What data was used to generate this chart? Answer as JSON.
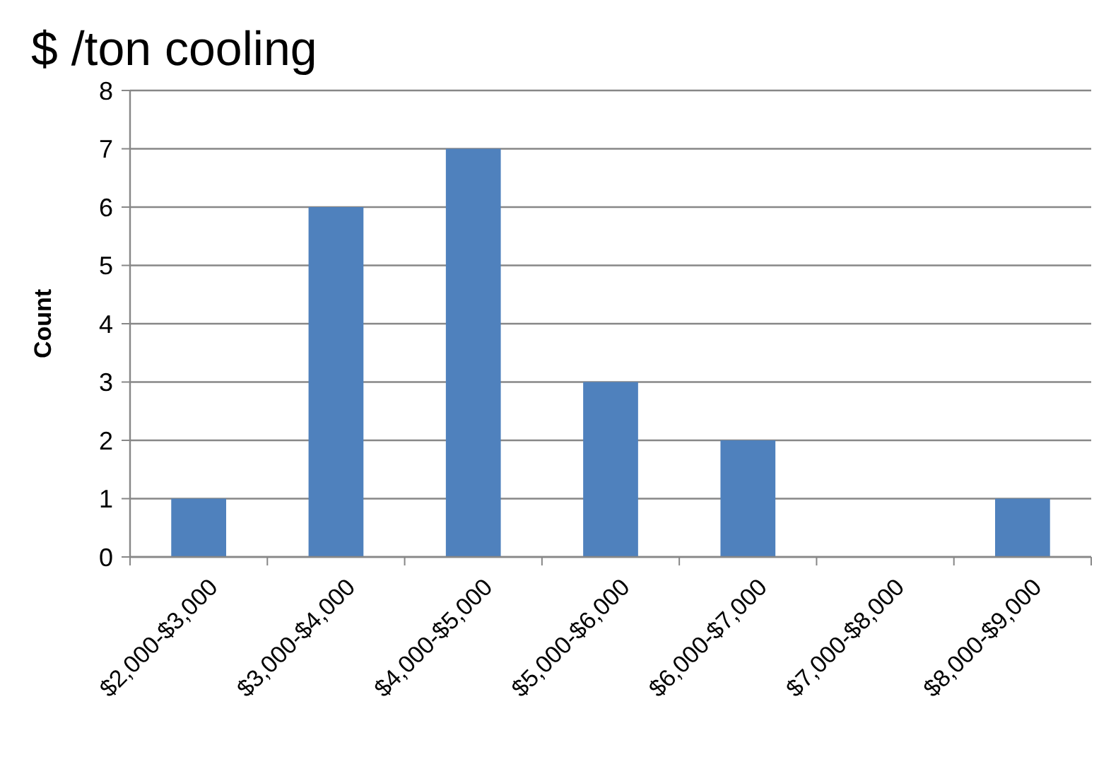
{
  "chart_data": {
    "type": "bar",
    "title": "$ /ton cooling",
    "ylabel": "Count",
    "categories": [
      "$2,000-$3,000",
      "$3,000-$4,000",
      "$4,000-$5,000",
      "$5,000-$6,000",
      "$6,000-$7,000",
      "$7,000-$8,000",
      "$8,000-$9,000"
    ],
    "values": [
      1,
      6,
      7,
      3,
      2,
      0,
      1
    ],
    "color": "#4f81bd",
    "ylim": [
      0,
      8
    ],
    "yticks": [
      0,
      1,
      2,
      3,
      4,
      5,
      6,
      7,
      8
    ],
    "grid": "y"
  }
}
